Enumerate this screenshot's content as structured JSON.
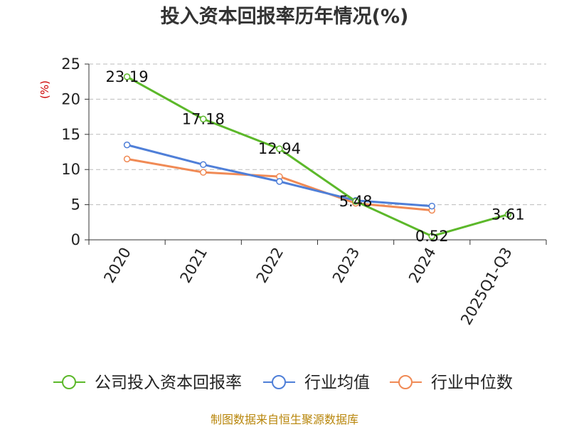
{
  "chart_data": {
    "type": "line",
    "title": "投入资本回报率历年情况(%)",
    "ylabel": "(%)",
    "categories": [
      "2020",
      "2021",
      "2022",
      "2023",
      "2024",
      "2025Q1-Q3"
    ],
    "ylim": [
      0,
      25
    ],
    "yticks": [
      0,
      5,
      10,
      15,
      20,
      25
    ],
    "grid": true,
    "legend_position": "bottom",
    "series": [
      {
        "name": "公司投入资本回报率",
        "color": "#5cb82a",
        "values": [
          23.19,
          17.18,
          12.94,
          5.48,
          0.52,
          3.61
        ],
        "labels": [
          "23.19",
          "17.18",
          "12.94",
          "5.48",
          "0.52",
          "3.61"
        ]
      },
      {
        "name": "行业均值",
        "color": "#4f7fd8",
        "values": [
          13.5,
          10.7,
          8.3,
          5.6,
          4.8,
          null
        ]
      },
      {
        "name": "行业中位数",
        "color": "#f08a55",
        "values": [
          11.5,
          9.6,
          9.0,
          5.2,
          4.2,
          null
        ]
      }
    ]
  },
  "source": "制图数据来自恒生聚源数据库"
}
